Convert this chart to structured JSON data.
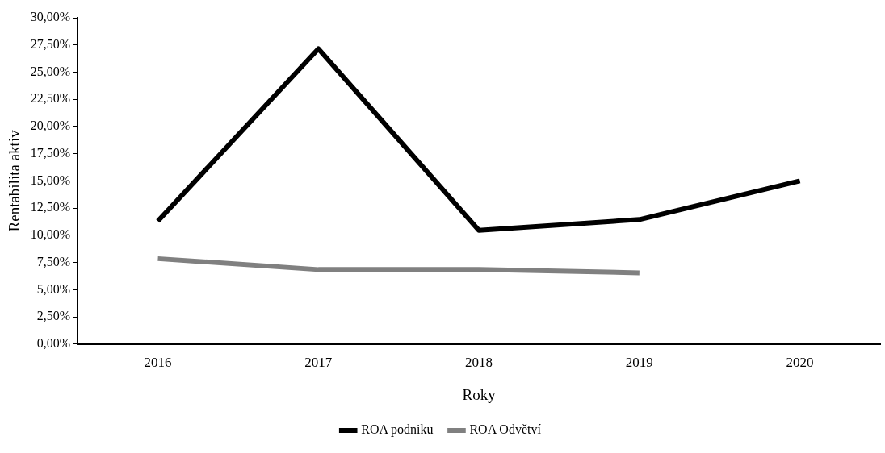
{
  "chart_data": {
    "type": "line",
    "xlabel": "Roky",
    "ylabel": "Rentabilita aktiv",
    "categories": [
      "2016",
      "2017",
      "2018",
      "2019",
      "2020"
    ],
    "series": [
      {
        "name": "ROA podniku",
        "color": "#000000",
        "values": [
          11.3,
          27.15,
          10.45,
          11.45,
          15.0
        ]
      },
      {
        "name": "ROA Odvětví",
        "color": "#808080",
        "values": [
          7.85,
          6.85,
          6.85,
          6.55,
          null
        ]
      }
    ],
    "ylim": [
      0,
      30
    ],
    "yticks": [
      {
        "value": 0,
        "label": "0,00%"
      },
      {
        "value": 2.5,
        "label": "2,50%"
      },
      {
        "value": 5,
        "label": "5,00%"
      },
      {
        "value": 7.5,
        "label": "7,50%"
      },
      {
        "value": 10,
        "label": "10,00%"
      },
      {
        "value": 12.5,
        "label": "12,50%"
      },
      {
        "value": 15,
        "label": "15,00%"
      },
      {
        "value": 17.5,
        "label": "17,50%"
      },
      {
        "value": 20,
        "label": "20,00%"
      },
      {
        "value": 22.5,
        "label": "22,50%"
      },
      {
        "value": 25,
        "label": "25,00%"
      },
      {
        "value": 27.5,
        "label": "27,50%"
      },
      {
        "value": 30,
        "label": "30,00%"
      }
    ],
    "grid": false,
    "legend": "bottom",
    "marker": "none",
    "line_style": "solid"
  }
}
